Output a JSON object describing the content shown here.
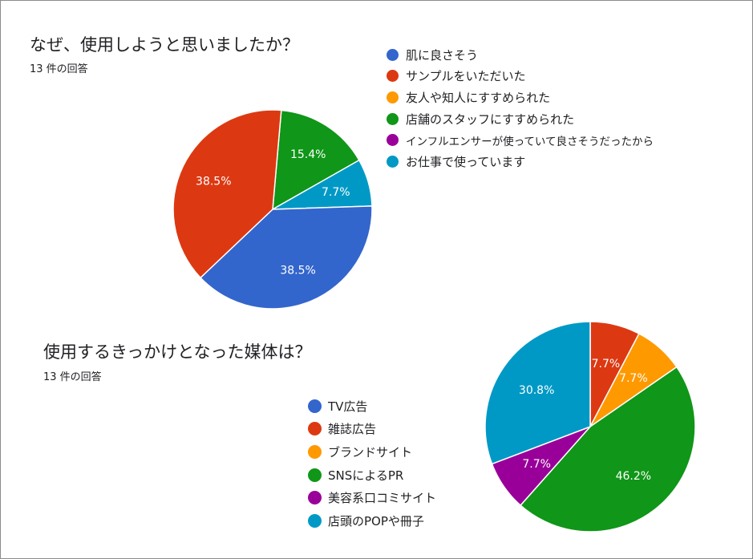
{
  "chart_data": [
    {
      "type": "pie",
      "title": "なぜ、使用しようと思いましたか？",
      "subtitle": "13 件の回答",
      "categories": [
        "肌に良さそう",
        "サンプルをいただいた",
        "友人や知人にすすめられた",
        "店舗のスタッフにすすめられた",
        "インフルエンサーが使っていて良さそうだったから",
        "お仕事で使っています"
      ],
      "values": [
        38.5,
        38.5,
        0,
        15.4,
        0,
        7.7
      ],
      "labels": [
        "38.5%",
        "38.5%",
        "",
        "15.4%",
        "",
        "7.7%"
      ],
      "colors": [
        "#3366cc",
        "#dc3912",
        "#ff9900",
        "#109618",
        "#990099",
        "#0099c6"
      ],
      "legend_position": "right"
    },
    {
      "type": "pie",
      "title": "使用するきっかけとなった媒体は？",
      "subtitle": "13 件の回答",
      "categories": [
        "TV広告",
        "雑誌広告",
        "ブランドサイト",
        "SNSによるPR",
        "美容系口コミサイト",
        "店頭のPOPや冊子"
      ],
      "values": [
        0,
        7.7,
        7.7,
        46.2,
        7.7,
        30.8
      ],
      "labels": [
        "",
        "7.7%",
        "7.7%",
        "46.2%",
        "7.7%",
        "30.8%"
      ],
      "colors": [
        "#3366cc",
        "#dc3912",
        "#ff9900",
        "#109618",
        "#990099",
        "#0099c6"
      ],
      "legend_position": "left"
    }
  ]
}
